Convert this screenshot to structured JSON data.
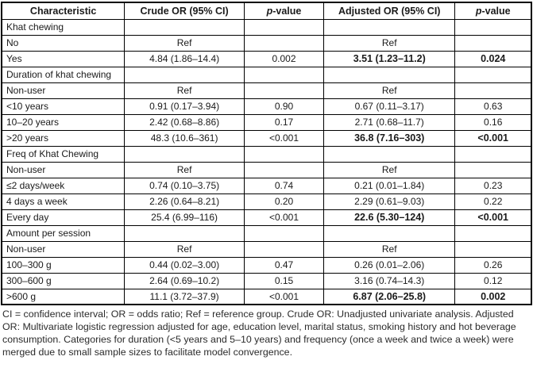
{
  "table": {
    "headers": [
      {
        "text": "Characteristic"
      },
      {
        "text": "Crude OR (95% CI)"
      },
      {
        "text": "p-value",
        "italic_first": true
      },
      {
        "text": "Adjusted OR (95% CI)"
      },
      {
        "text": "p-value",
        "italic_first": true
      }
    ],
    "rows": [
      {
        "type": "section",
        "label": "Khat chewing"
      },
      {
        "type": "data",
        "cells": [
          "No",
          "Ref",
          "",
          "Ref",
          ""
        ]
      },
      {
        "type": "data",
        "highlight": true,
        "cells": [
          "Yes",
          "4.84 (1.86–14.4)",
          "0.002",
          "3.51 (1.23–11.2)",
          "0.024"
        ]
      },
      {
        "type": "section",
        "label": "Duration of khat chewing"
      },
      {
        "type": "data",
        "cells": [
          "Non-user",
          "Ref",
          "",
          "Ref",
          ""
        ]
      },
      {
        "type": "data",
        "cells": [
          "<10 years",
          "0.91 (0.17–3.94)",
          "0.90",
          "0.67 (0.11–3.17)",
          "0.63"
        ]
      },
      {
        "type": "data",
        "cells": [
          "10–20 years",
          "2.42 (0.68–8.86)",
          "0.17",
          "2.71 (0.68–11.7)",
          "0.16"
        ]
      },
      {
        "type": "data",
        "highlight": true,
        "cells": [
          ">20 years",
          "48.3 (10.6–361)",
          "<0.001",
          "36.8 (7.16–303)",
          "<0.001"
        ]
      },
      {
        "type": "section",
        "label": "Freq of  Khat Chewing"
      },
      {
        "type": "data",
        "cells": [
          "Non-user",
          "Ref",
          "",
          "Ref",
          ""
        ]
      },
      {
        "type": "data",
        "cells": [
          "≤2 days/week",
          "0.74 (0.10–3.75)",
          "0.74",
          "0.21 (0.01–1.84)",
          "0.23"
        ]
      },
      {
        "type": "data",
        "cells": [
          "4 days a week",
          "2.26 (0.64–8.21)",
          "0.20",
          "2.29 (0.61–9.03)",
          "0.22"
        ]
      },
      {
        "type": "data",
        "highlight": true,
        "cells": [
          "Every day",
          "25.4 (6.99–116)",
          "<0.001",
          "22.6 (5.30–124)",
          "<0.001"
        ]
      },
      {
        "type": "section",
        "label": "Amount per session"
      },
      {
        "type": "data",
        "cells": [
          "Non-user",
          "Ref",
          "",
          "Ref",
          ""
        ]
      },
      {
        "type": "data",
        "cells": [
          "100–300 g",
          "0.44 (0.02–3.00)",
          "0.47",
          "0.26 (0.01–2.06)",
          "0.26"
        ]
      },
      {
        "type": "data",
        "cells": [
          "300–600 g",
          "2.64 (0.69–10.2)",
          "0.15",
          "3.16 (0.74–14.3)",
          "0.12"
        ]
      },
      {
        "type": "data",
        "highlight": true,
        "cells": [
          ">600 g",
          "11.1 (3.72–37.9)",
          "<0.001",
          "6.87 (2.06–25.8)",
          "0.002"
        ]
      }
    ],
    "footnote": "CI = confidence interval; OR = odds ratio; Ref = reference group. Crude OR: Unadjusted univariate analysis. Adjusted OR: Multivariate logistic regression adjusted for age, education level, marital status, smoking history and hot beverage consumption. Categories for duration (<5 years and 5–10 years) and frequency (once a week and twice a week) were merged due to small sample sizes to facilitate model convergence."
  }
}
